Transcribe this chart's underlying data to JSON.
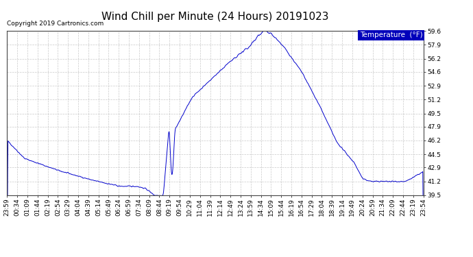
{
  "title": "Wind Chill per Minute (24 Hours) 20191023",
  "copyright": "Copyright 2019 Cartronics.com",
  "legend_label": "Temperature  (°F)",
  "legend_bg": "#0000bb",
  "legend_text_color": "#ffffff",
  "line_color": "#0000cc",
  "bg_color": "#ffffff",
  "plot_bg_color": "#ffffff",
  "grid_color": "#bbbbbb",
  "ylim": [
    39.5,
    59.6
  ],
  "yticks": [
    39.5,
    41.2,
    42.9,
    44.5,
    46.2,
    47.9,
    49.5,
    51.2,
    52.9,
    54.6,
    56.2,
    57.9,
    59.6
  ],
  "xtick_labels": [
    "23:59",
    "00:34",
    "01:09",
    "01:44",
    "02:19",
    "02:54",
    "03:29",
    "04:04",
    "04:39",
    "05:14",
    "05:49",
    "06:24",
    "06:59",
    "07:34",
    "08:09",
    "08:44",
    "09:19",
    "09:54",
    "10:29",
    "11:04",
    "11:39",
    "12:14",
    "12:49",
    "13:24",
    "13:59",
    "14:34",
    "15:09",
    "15:44",
    "16:19",
    "16:54",
    "17:29",
    "18:04",
    "18:39",
    "19:14",
    "19:49",
    "20:24",
    "20:59",
    "21:34",
    "22:09",
    "22:44",
    "23:19",
    "23:54"
  ],
  "title_fontsize": 11,
  "copyright_fontsize": 6.5,
  "tick_fontsize": 6.5,
  "legend_fontsize": 7.5,
  "figsize": [
    6.9,
    3.75
  ],
  "dpi": 100
}
